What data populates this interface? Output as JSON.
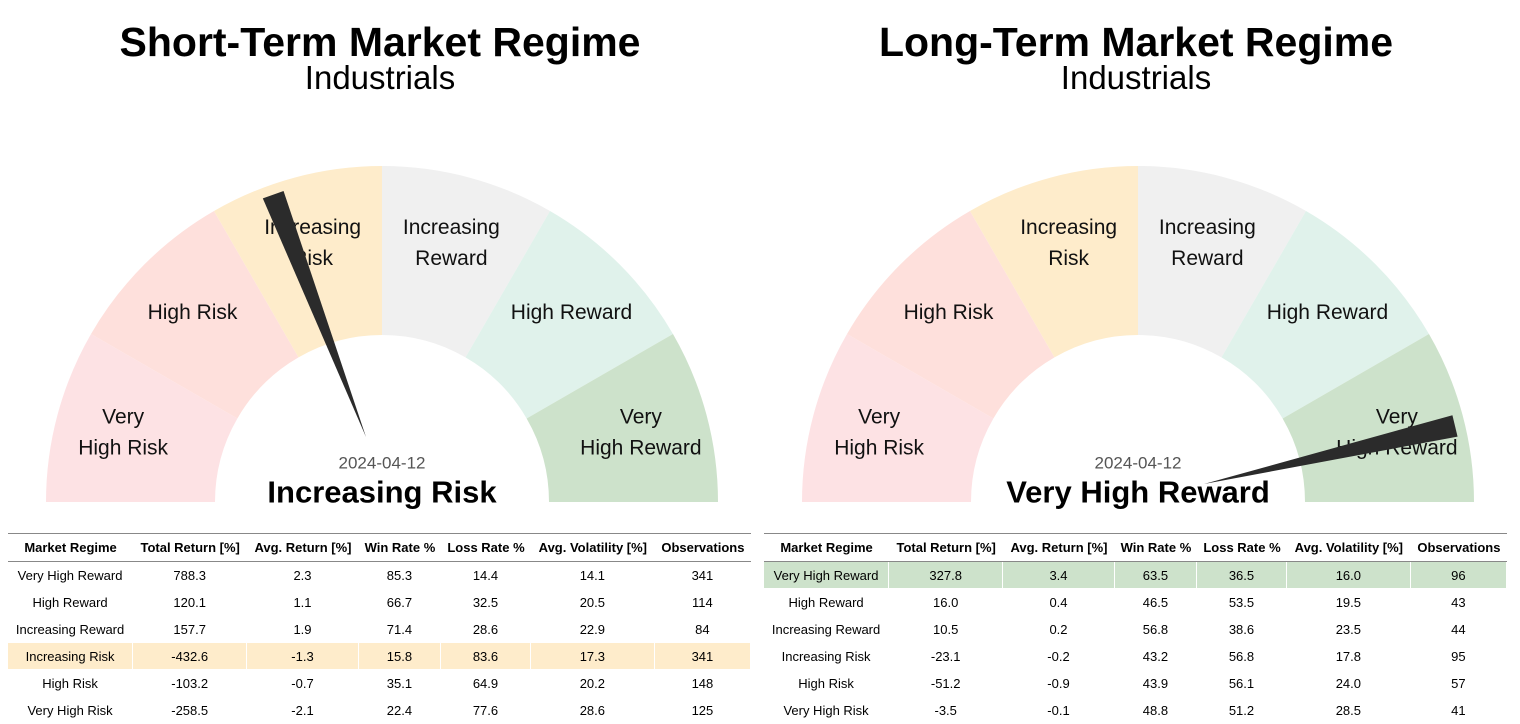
{
  "chart_data": [
    {
      "type": "gauge",
      "title": "Short-Term Market Regime",
      "subtitle": "Industrials",
      "date": "2024-04-12",
      "current_regime": "Increasing Risk",
      "needle_value": 2.35,
      "segments": [
        {
          "label": [
            "Very",
            "High Risk"
          ],
          "color": "#fde2e4"
        },
        {
          "label": [
            "High Risk"
          ],
          "color": "#fee0dc"
        },
        {
          "label": [
            "Increasing",
            "Risk"
          ],
          "color": "#feeccb"
        },
        {
          "label": [
            "Increasing",
            "Reward"
          ],
          "color": "#f0f0f0"
        },
        {
          "label": [
            "High Reward"
          ],
          "color": "#e0f2eb"
        },
        {
          "label": [
            "Very",
            "High Reward"
          ],
          "color": "#cde2cb"
        }
      ],
      "table": {
        "columns": [
          "Market Regime",
          "Total Return [%]",
          "Avg. Return [%]",
          "Win Rate %",
          "Loss Rate %",
          "Avg. Volatility [%]",
          "Observations"
        ],
        "rows": [
          [
            "Very High Reward",
            "788.3",
            "2.3",
            "85.3",
            "14.4",
            "14.1",
            "341"
          ],
          [
            "High Reward",
            "120.1",
            "1.1",
            "66.7",
            "32.5",
            "20.5",
            "114"
          ],
          [
            "Increasing Reward",
            "157.7",
            "1.9",
            "71.4",
            "28.6",
            "22.9",
            "84"
          ],
          [
            "Increasing Risk",
            "-432.6",
            "-1.3",
            "15.8",
            "83.6",
            "17.3",
            "341"
          ],
          [
            "High Risk",
            "-103.2",
            "-0.7",
            "35.1",
            "64.9",
            "20.2",
            "148"
          ],
          [
            "Very High Risk",
            "-258.5",
            "-2.1",
            "22.4",
            "77.6",
            "28.6",
            "125"
          ]
        ],
        "highlight_row": 3,
        "highlight_color": "#feeccb"
      }
    },
    {
      "type": "gauge",
      "title": "Long-Term Market Regime",
      "subtitle": "Industrials",
      "date": "2024-04-12",
      "current_regime": "Very High Reward",
      "needle_value": 5.55,
      "segments": [
        {
          "label": [
            "Very",
            "High Risk"
          ],
          "color": "#fde2e4"
        },
        {
          "label": [
            "High Risk"
          ],
          "color": "#fee0dc"
        },
        {
          "label": [
            "Increasing",
            "Risk"
          ],
          "color": "#feeccb"
        },
        {
          "label": [
            "Increasing",
            "Reward"
          ],
          "color": "#f0f0f0"
        },
        {
          "label": [
            "High Reward"
          ],
          "color": "#e0f2eb"
        },
        {
          "label": [
            "Very",
            "High Reward"
          ],
          "color": "#cde2cb"
        }
      ],
      "table": {
        "columns": [
          "Market Regime",
          "Total Return [%]",
          "Avg. Return [%]",
          "Win Rate %",
          "Loss Rate %",
          "Avg. Volatility [%]",
          "Observations"
        ],
        "rows": [
          [
            "Very High Reward",
            "327.8",
            "3.4",
            "63.5",
            "36.5",
            "16.0",
            "96"
          ],
          [
            "High Reward",
            "16.0",
            "0.4",
            "46.5",
            "53.5",
            "19.5",
            "43"
          ],
          [
            "Increasing Reward",
            "10.5",
            "0.2",
            "56.8",
            "38.6",
            "23.5",
            "44"
          ],
          [
            "Increasing Risk",
            "-23.1",
            "-0.2",
            "43.2",
            "56.8",
            "17.8",
            "95"
          ],
          [
            "High Risk",
            "-51.2",
            "-0.9",
            "43.9",
            "56.1",
            "24.0",
            "57"
          ],
          [
            "Very High Risk",
            "-3.5",
            "-0.1",
            "48.8",
            "51.2",
            "28.5",
            "41"
          ]
        ],
        "highlight_row": 0,
        "highlight_color": "#cde2cb"
      }
    }
  ]
}
